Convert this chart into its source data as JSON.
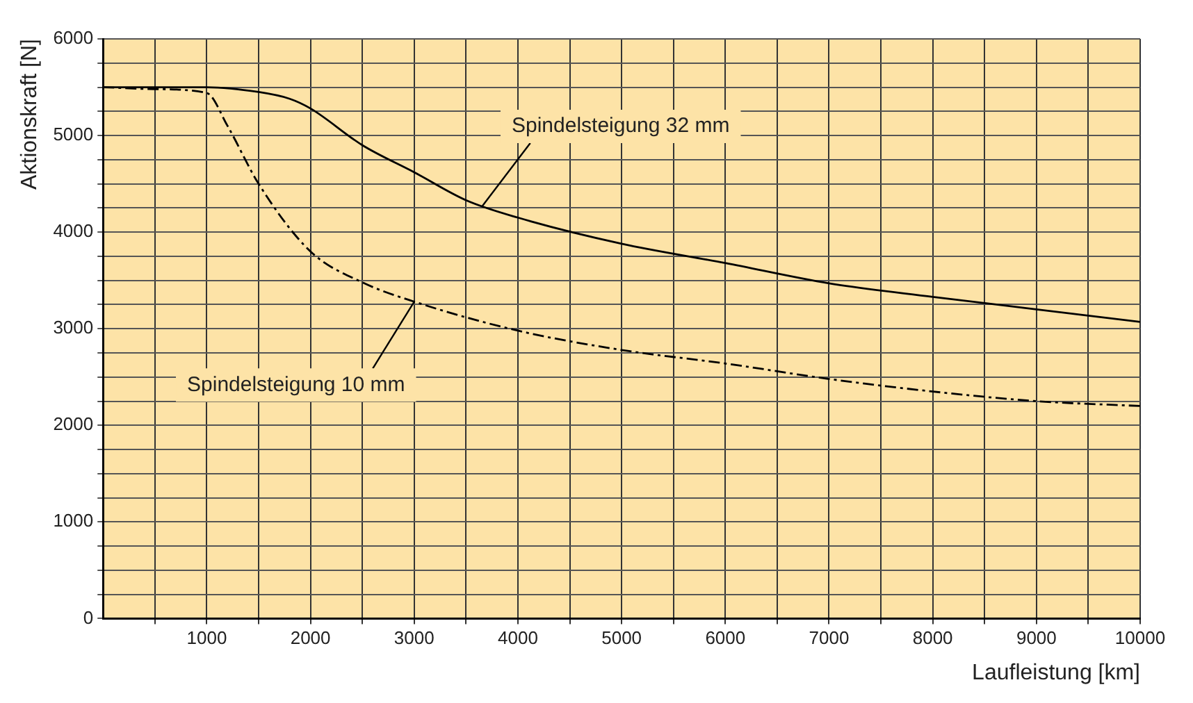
{
  "chart_data": {
    "type": "line",
    "xlabel": "Laufleistung [km]",
    "ylabel": "Aktionskraft [N]",
    "xlim": [
      0,
      10000
    ],
    "ylim": [
      0,
      6000
    ],
    "xticks": [
      {
        "value": 500,
        "label": null
      },
      1000,
      {
        "value": 1500,
        "label": null
      },
      2000,
      {
        "value": 2500,
        "label": null
      },
      3000,
      {
        "value": 3500,
        "label": null
      },
      4000,
      {
        "value": 4500,
        "label": null
      },
      5000,
      {
        "value": 5500,
        "label": null
      },
      6000,
      {
        "value": 6500,
        "label": null
      },
      7000,
      {
        "value": 7500,
        "label": null
      },
      8000,
      {
        "value": 8500,
        "label": null
      },
      9000,
      {
        "value": 9500,
        "label": null
      },
      10000
    ],
    "yticks": [
      0,
      {
        "value": 250,
        "label": null
      },
      {
        "value": 500,
        "label": null
      },
      {
        "value": 750,
        "label": null
      },
      1000,
      {
        "value": 1250,
        "label": null
      },
      {
        "value": 1500,
        "label": null
      },
      {
        "value": 1750,
        "label": null
      },
      2000,
      {
        "value": 2250,
        "label": null
      },
      {
        "value": 2500,
        "label": null
      },
      {
        "value": 2750,
        "label": null
      },
      3000,
      {
        "value": 3250,
        "label": null
      },
      {
        "value": 3500,
        "label": null
      },
      {
        "value": 3750,
        "label": null
      },
      4000,
      {
        "value": 4250,
        "label": null
      },
      {
        "value": 4500,
        "label": null
      },
      {
        "value": 4750,
        "label": null
      },
      5000,
      {
        "value": 5250,
        "label": null
      },
      {
        "value": 5500,
        "label": null
      },
      {
        "value": 5750,
        "label": null
      },
      6000
    ],
    "grid": true,
    "marker": "none",
    "series": [
      {
        "color": "#000000",
        "line_style": "solid",
        "x": [
          0,
          1000,
          1500,
          1800,
          2000,
          2500,
          3000,
          3500,
          4000,
          5000,
          6000,
          7000,
          8000,
          9000,
          10000
        ],
        "values": [
          5500,
          5500,
          5450,
          5380,
          5280,
          4900,
          4620,
          4330,
          4150,
          3880,
          3680,
          3470,
          3330,
          3200,
          3070
        ]
      },
      {
        "color": "#000000",
        "line_style": "dashed",
        "x": [
          0,
          500,
          1000,
          1200,
          1500,
          2000,
          2500,
          3000,
          4000,
          5000,
          6000,
          7000,
          8000,
          9000,
          10000
        ],
        "values": [
          5500,
          5480,
          5440,
          5100,
          4500,
          3800,
          3480,
          3280,
          2980,
          2780,
          2640,
          2480,
          2350,
          2250,
          2200
        ]
      }
    ],
    "annotations": [
      {
        "text": "Spindelsteigung 32 mm",
        "x": 3650,
        "y": 4260
      },
      {
        "text": "Spindelsteigung 10 mm",
        "x": 3000,
        "y": 3280
      }
    ]
  }
}
